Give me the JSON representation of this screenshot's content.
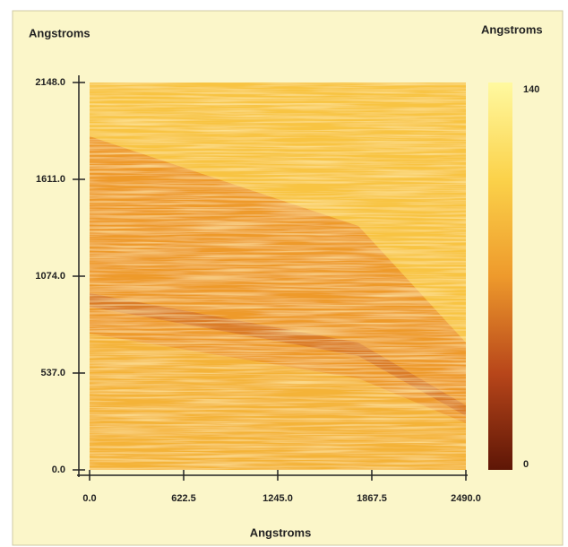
{
  "chart_data": {
    "type": "heatmap",
    "x_label": "Angstroms",
    "y_label": "Angstroms",
    "colorbar_label": "Angstroms",
    "xlim": [
      0,
      2490
    ],
    "xticks": [
      {
        "value": 0,
        "label": "0.0"
      },
      {
        "value": 622.5,
        "label": "622.5"
      },
      {
        "value": 1245,
        "label": "1245.0"
      },
      {
        "value": 1867.5,
        "label": "1867.5"
      },
      {
        "value": 2490,
        "label": "2490.0"
      }
    ],
    "ylim": [
      0,
      2148
    ],
    "yticks": [
      {
        "value": 0,
        "label": "0.0"
      },
      {
        "value": 537,
        "label": "537.0"
      },
      {
        "value": 1074,
        "label": "1074.0"
      },
      {
        "value": 1611,
        "label": "1611.0"
      },
      {
        "value": 2148,
        "label": "2148.0"
      }
    ],
    "clim": [
      0,
      140
    ],
    "cticks": [
      0,
      140
    ],
    "colormap": [
      "#5e1606",
      "#b8461a",
      "#ee9a2c",
      "#fbd24a",
      "#fff9a0"
    ]
  }
}
